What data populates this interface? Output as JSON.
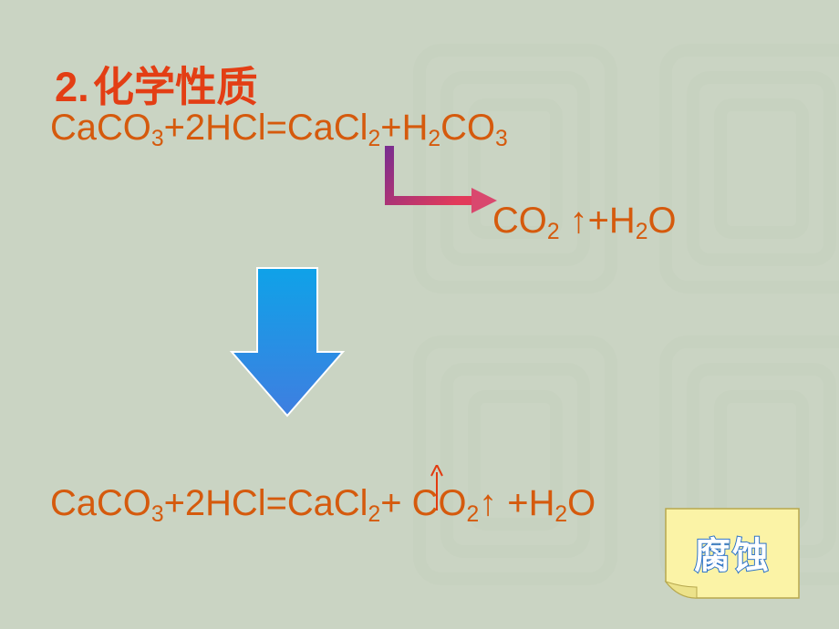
{
  "slide": {
    "background_color": "#cad4c3",
    "watermark_color": "#b9c7b2",
    "heading": {
      "number": "2.",
      "text": "化学性质",
      "color": "#e33e14",
      "fontsize_pt": 34
    },
    "text_color": "#d55a0d",
    "formula_fontsize_pt": 30,
    "eq1": {
      "terms": [
        {
          "base": "CaCO",
          "sub": "3"
        },
        {
          "op": "+"
        },
        {
          "base": "2HCl"
        },
        {
          "op": "="
        },
        {
          "base": "CaCl",
          "sub": "2"
        },
        {
          "op": "+"
        },
        {
          "base": "H",
          "sub": "2"
        },
        {
          "base": "CO",
          "sub": "3"
        }
      ]
    },
    "decomp": {
      "terms": [
        {
          "base": "CO",
          "sub": "2"
        },
        {
          "op": " ↑"
        },
        {
          "op": "+"
        },
        {
          "base": "H",
          "sub": "2"
        },
        {
          "base": "O"
        }
      ]
    },
    "eq2": {
      "terms": [
        {
          "base": "CaCO",
          "sub": "3"
        },
        {
          "op": "+"
        },
        {
          "base": "2HCl"
        },
        {
          "op": "="
        },
        {
          "base": "CaCl",
          "sub": "2"
        },
        {
          "op": "+ "
        },
        {
          "base": "CO",
          "sub": "2"
        },
        {
          "op": "↑ "
        },
        {
          "op": "+"
        },
        {
          "base": "H",
          "sub": "2"
        },
        {
          "base": "O"
        }
      ]
    },
    "elbow_arrow": {
      "stroke_width": 10,
      "grad_start": "#7a2d8f",
      "grad_end": "#e23a5a",
      "head_color": "#d9486e"
    },
    "block_arrow": {
      "grad_top": "#0fa2e8",
      "grad_bottom": "#3f7ee0",
      "stroke": "#ffffff"
    },
    "eq2_arrow": {
      "color": "#e23a10",
      "stroke_width": 2
    },
    "sticky": {
      "fill": "#fbf3a6",
      "stroke": "#b7a84e",
      "curl_fill": "#ece28a",
      "label": "腐蚀",
      "label_fill": "#ffffff",
      "label_stroke": "#2e74c7",
      "label_fontsize_pt": 30
    }
  }
}
